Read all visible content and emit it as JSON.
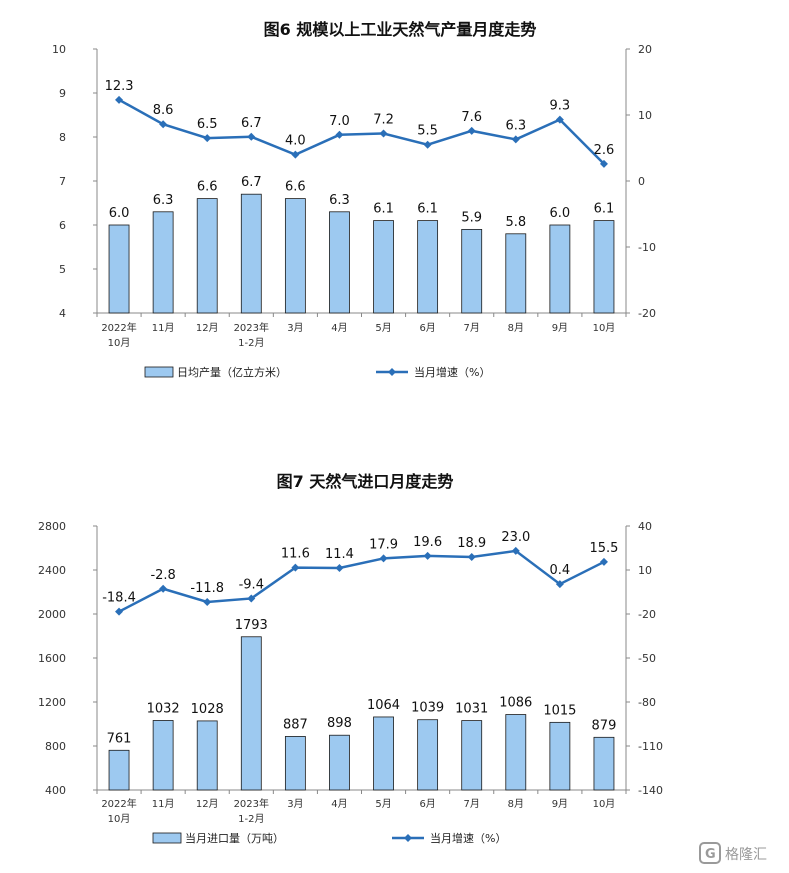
{
  "watermark": "格隆汇",
  "chart_data": [
    {
      "type": "bar",
      "title": "图6 规模以上工业天然气产量月度走势",
      "categories": [
        [
          "2022年",
          "10月"
        ],
        [
          "11月"
        ],
        [
          "12月"
        ],
        [
          "2023年",
          "1-2月"
        ],
        [
          "3月"
        ],
        [
          "4月"
        ],
        [
          "5月"
        ],
        [
          "6月"
        ],
        [
          "7月"
        ],
        [
          "8月"
        ],
        [
          "9月"
        ],
        [
          "10月"
        ]
      ],
      "series": [
        {
          "name": "日均产量（亿立方米）",
          "type": "bar",
          "axis": "left",
          "values": [
            6.0,
            6.3,
            6.6,
            6.7,
            6.6,
            6.3,
            6.1,
            6.1,
            5.9,
            5.8,
            6.0,
            6.1
          ],
          "labels": [
            "6.0",
            "6.3",
            "6.6",
            "6.7",
            "6.6",
            "6.3",
            "6.1",
            "6.1",
            "5.9",
            "5.8",
            "6.0",
            "6.1"
          ]
        },
        {
          "name": "当月增速（%）",
          "type": "line",
          "axis": "right",
          "values": [
            12.3,
            8.6,
            6.5,
            6.7,
            4.0,
            7.0,
            7.2,
            5.5,
            7.6,
            6.3,
            9.3,
            2.6
          ],
          "labels": [
            "12.3",
            "8.6",
            "6.5",
            "6.7",
            "4.0",
            "7.0",
            "7.2",
            "5.5",
            "7.6",
            "6.3",
            "9.3",
            "2.6"
          ]
        }
      ],
      "left_axis": {
        "min": 4,
        "max": 10,
        "ticks": [
          "4",
          "5",
          "6",
          "7",
          "8",
          "9",
          "10"
        ]
      },
      "right_axis": {
        "min": -20,
        "max": 20,
        "ticks": [
          "-20",
          "-10",
          "0",
          "10",
          "20"
        ]
      },
      "legend_position": "bottom",
      "bar_color": "#9dc9f0",
      "line_color": "#2a6fb8"
    },
    {
      "type": "bar",
      "title": "图7 天然气进口月度走势",
      "categories": [
        [
          "2022年",
          "10月"
        ],
        [
          "11月"
        ],
        [
          "12月"
        ],
        [
          "2023年",
          "1-2月"
        ],
        [
          "3月"
        ],
        [
          "4月"
        ],
        [
          "5月"
        ],
        [
          "6月"
        ],
        [
          "7月"
        ],
        [
          "8月"
        ],
        [
          "9月"
        ],
        [
          "10月"
        ]
      ],
      "series": [
        {
          "name": "当月进口量（万吨）",
          "type": "bar",
          "axis": "left",
          "values": [
            761,
            1032,
            1028,
            1793,
            887,
            898,
            1064,
            1039,
            1031,
            1086,
            1015,
            879
          ],
          "labels": [
            "761",
            "1032",
            "1028",
            "1793",
            "887",
            "898",
            "1064",
            "1039",
            "1031",
            "1086",
            "1015",
            "879"
          ]
        },
        {
          "name": "当月增速（%）",
          "type": "line",
          "axis": "right",
          "values": [
            -18.4,
            -2.8,
            -11.8,
            -9.4,
            11.6,
            11.4,
            17.9,
            19.6,
            18.9,
            23.0,
            0.4,
            15.5
          ],
          "labels": [
            "-18.4",
            "-2.8",
            "-11.8",
            "-9.4",
            "11.6",
            "11.4",
            "17.9",
            "19.6",
            "18.9",
            "23.0",
            "0.4",
            "15.5"
          ]
        }
      ],
      "left_axis": {
        "min": 400,
        "max": 2800,
        "ticks": [
          "400",
          "800",
          "1200",
          "1600",
          "2000",
          "2400",
          "2800"
        ]
      },
      "right_axis": {
        "min": -140,
        "max": 40,
        "ticks": [
          "-140",
          "-110",
          "-80",
          "-50",
          "-20",
          "10",
          "40"
        ]
      },
      "legend_position": "bottom",
      "bar_color": "#9dc9f0",
      "line_color": "#2a6fb8"
    }
  ]
}
